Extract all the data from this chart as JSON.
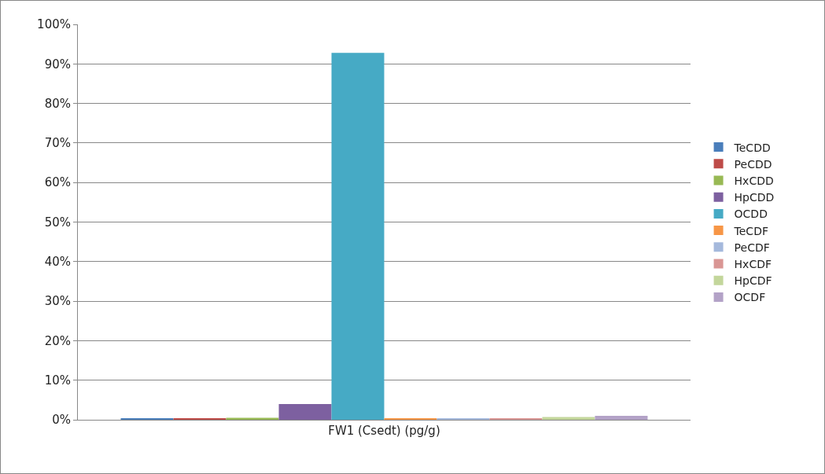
{
  "chart_data": {
    "type": "bar",
    "categories": [
      "FW1 (Csedt) (pg/g)"
    ],
    "series": [
      {
        "name": "TeCDD",
        "color": "#4a7ebb",
        "values": [
          0.2
        ]
      },
      {
        "name": "PeCDD",
        "color": "#be4b48",
        "values": [
          0.2
        ]
      },
      {
        "name": "HxCDD",
        "color": "#98b954",
        "values": [
          0.5
        ]
      },
      {
        "name": "HpCDD",
        "color": "#7d60a0",
        "values": [
          4
        ]
      },
      {
        "name": "OCDD",
        "color": "#46aac5",
        "values": [
          92.8
        ]
      },
      {
        "name": "TeCDF",
        "color": "#f79646",
        "values": [
          0.2
        ]
      },
      {
        "name": "PeCDF",
        "color": "#a5b9dc",
        "values": [
          0.2
        ]
      },
      {
        "name": "HxCDF",
        "color": "#d99694",
        "values": [
          0.2
        ]
      },
      {
        "name": "HpCDF",
        "color": "#c3d69b",
        "values": [
          0.7
        ]
      },
      {
        "name": "OCDF",
        "color": "#b3a2c7",
        "values": [
          1.0
        ]
      }
    ],
    "ylim": [
      0,
      100
    ],
    "yticks": [
      {
        "value": 0,
        "label": "0%"
      },
      {
        "value": 10,
        "label": "10%"
      },
      {
        "value": 20,
        "label": "20%"
      },
      {
        "value": 30,
        "label": "30%"
      },
      {
        "value": 40,
        "label": "40%"
      },
      {
        "value": 50,
        "label": "50%"
      },
      {
        "value": 60,
        "label": "60%"
      },
      {
        "value": 70,
        "label": "70%"
      },
      {
        "value": 80,
        "label": "80%"
      },
      {
        "value": 90,
        "label": "90%"
      },
      {
        "value": 100,
        "label": "100%"
      }
    ],
    "grid": "y",
    "legend": "right"
  }
}
